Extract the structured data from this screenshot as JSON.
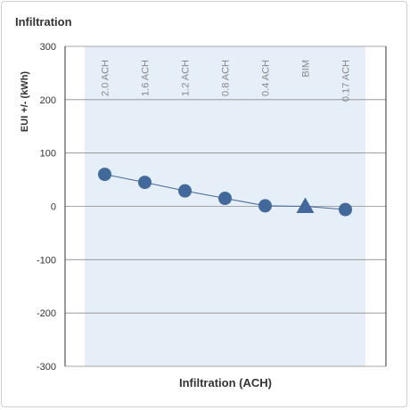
{
  "panel": {
    "title": "Infiltration"
  },
  "chart_data": {
    "type": "line",
    "title": "Infiltration",
    "xlabel": "Infiltration (ACH)",
    "ylabel": "EUI +/- (kWh)",
    "categories": [
      "2.0 ACH",
      "1.6 ACH",
      "1.2 ACH",
      "0.8 ACH",
      "0.4 ACH",
      "BIM",
      "0.17 ACH"
    ],
    "series": [
      {
        "values": [
          60,
          45,
          29,
          15,
          1,
          0,
          -6
        ],
        "markers": [
          "circle",
          "circle",
          "circle",
          "circle",
          "circle",
          "triangle",
          "circle"
        ]
      }
    ],
    "ylim": [
      -300,
      300
    ],
    "yticks": [
      300,
      200,
      100,
      0,
      -100,
      -200,
      -300
    ],
    "grid": true,
    "colors": {
      "series": "#41699c",
      "band": "#e6eef8",
      "grid": "#8c8c8c",
      "axis": "#333333"
    }
  }
}
